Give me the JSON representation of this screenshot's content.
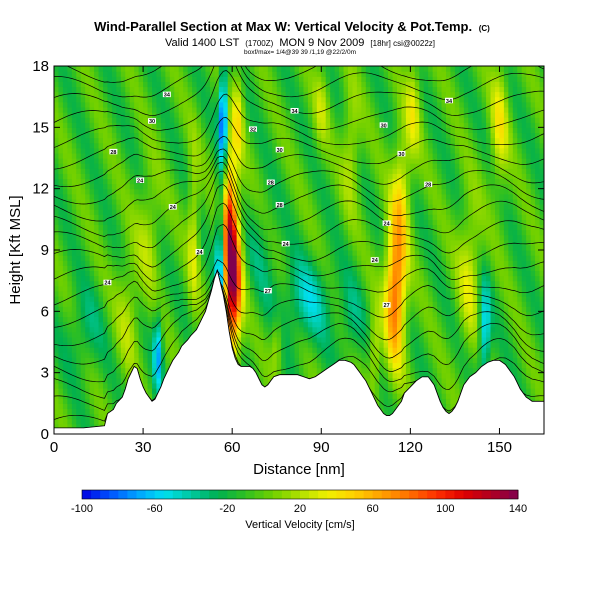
{
  "title": {
    "main": "Wind-Parallel Section at Max W: Vertical Velocity & Pot.Temp.",
    "copyright": "(C)",
    "valid_line": "Valid 1400 LST",
    "utc": "(1700Z)",
    "date_line": "MON 9 Nov 2009",
    "credit": "[18hr] csi@0022z]",
    "fine_print": "boxf/max= 1/4@39 39 /1,19 @22/2/0m"
  },
  "chart_data": {
    "type": "heatmap",
    "xlabel": "Distance [nm]",
    "ylabel": "Height [Kft MSL]",
    "xlim": [
      0,
      165
    ],
    "ylim": [
      0,
      18
    ],
    "x_ticks": [
      0,
      30,
      60,
      90,
      120,
      150
    ],
    "y_ticks": [
      0,
      3,
      6,
      9,
      12,
      15,
      18
    ],
    "colorbar": {
      "label": "Vertical Velocity [cm/s]",
      "range": [
        -100,
        140
      ],
      "ticks": [
        -100,
        -60,
        -20,
        20,
        60,
        100,
        140
      ],
      "colors": [
        "#0000e0",
        "#0050ff",
        "#00a0ff",
        "#00e0f0",
        "#00c8a0",
        "#00b050",
        "#30c020",
        "#70d000",
        "#b0e000",
        "#f0f000",
        "#ffd000",
        "#ffa000",
        "#ff7000",
        "#ff3000",
        "#e00000",
        "#b00020",
        "#800050"
      ]
    },
    "terrain": {
      "x": [
        0,
        10,
        17,
        18,
        20,
        21,
        23,
        24,
        25,
        26,
        27,
        28,
        29,
        30,
        31,
        32,
        33,
        34,
        35,
        36,
        37,
        38,
        39,
        40,
        42,
        43,
        45,
        46,
        48,
        49,
        50,
        51,
        52,
        53,
        54,
        55,
        56,
        57,
        58,
        59,
        60,
        61,
        62,
        63,
        64,
        65,
        66,
        67,
        68,
        69,
        70,
        71,
        72,
        73,
        74,
        76,
        78,
        80,
        82,
        84,
        86,
        88,
        90,
        92,
        94,
        96,
        98,
        100,
        101,
        102,
        103,
        104,
        105,
        106,
        107,
        108,
        109,
        110,
        111,
        112,
        113,
        114,
        115,
        116,
        117,
        118,
        120,
        122,
        124,
        126,
        128,
        129,
        130,
        131,
        132,
        133,
        134,
        135,
        136,
        137,
        138,
        140,
        142,
        144,
        146,
        148,
        150,
        151,
        152,
        153,
        154,
        155,
        156,
        157,
        158,
        159,
        160,
        161,
        162,
        163,
        165
      ],
      "z": [
        0.3,
        0.3,
        0.4,
        1.0,
        1.2,
        1.5,
        1.8,
        2.2,
        2.7,
        3.0,
        3.3,
        3.2,
        2.7,
        2.3,
        2.0,
        1.8,
        1.6,
        1.7,
        2.0,
        2.3,
        2.7,
        3.0,
        3.3,
        3.6,
        4.0,
        4.3,
        4.6,
        4.8,
        5.1,
        5.4,
        5.7,
        6.0,
        6.5,
        7.0,
        7.6,
        8.0,
        7.4,
        6.8,
        6.0,
        5.0,
        4.2,
        3.7,
        3.4,
        3.3,
        3.3,
        3.3,
        3.3,
        3.2,
        3.0,
        2.7,
        2.4,
        2.3,
        2.4,
        2.6,
        2.8,
        2.9,
        2.9,
        2.9,
        2.9,
        2.8,
        2.7,
        2.8,
        3.0,
        3.2,
        3.4,
        3.6,
        3.6,
        3.5,
        3.4,
        3.2,
        3.0,
        2.8,
        2.6,
        2.3,
        2.0,
        1.7,
        1.4,
        1.2,
        1.0,
        0.9,
        0.9,
        1.0,
        1.2,
        1.4,
        1.6,
        2.0,
        2.3,
        2.6,
        2.8,
        2.8,
        2.4,
        2.0,
        1.6,
        1.3,
        1.1,
        1.0,
        1.1,
        1.3,
        1.6,
        2.0,
        2.4,
        2.8,
        3.0,
        3.3,
        3.5,
        3.6,
        3.6,
        3.5,
        3.4,
        3.2,
        3.0,
        2.8,
        2.5,
        2.2,
        2.0,
        1.8,
        1.7,
        1.6,
        1.6,
        1.6,
        1.6
      ]
    },
    "field_model": {
      "background": -8,
      "features": [
        {
          "x": 60,
          "z": 7.5,
          "sx": 3.0,
          "sz": 3.5,
          "w": 145
        },
        {
          "x": 59,
          "z": 11.5,
          "sx": 2.2,
          "sz": 3.0,
          "w": 65
        },
        {
          "x": 62,
          "z": 15.5,
          "sx": 2.0,
          "sz": 2.5,
          "w": 40
        },
        {
          "x": 56,
          "z": 8.0,
          "sx": 1.5,
          "sz": 3.5,
          "w": -75
        },
        {
          "x": 57,
          "z": 15.5,
          "sx": 1.5,
          "sz": 2.5,
          "w": -85
        },
        {
          "x": 54,
          "z": 4.5,
          "sx": 1.5,
          "sz": 2.0,
          "w": -60
        },
        {
          "x": 85,
          "z": 6.5,
          "sx": 9.0,
          "sz": 2.0,
          "w": -35
        },
        {
          "x": 100,
          "z": 5.5,
          "sx": 4.0,
          "sz": 2.0,
          "w": -20
        },
        {
          "x": 115,
          "z": 7.0,
          "sx": 3.5,
          "sz": 3.5,
          "w": 95
        },
        {
          "x": 117,
          "z": 12.0,
          "sx": 3.0,
          "sz": 3.0,
          "w": 40
        },
        {
          "x": 121,
          "z": 16.0,
          "sx": 2.5,
          "sz": 2.5,
          "w": 35
        },
        {
          "x": 108,
          "z": 4.0,
          "sx": 2.0,
          "sz": 2.0,
          "w": 35
        },
        {
          "x": 145,
          "z": 5.0,
          "sx": 2.0,
          "sz": 2.5,
          "w": -55
        },
        {
          "x": 140,
          "z": 8.0,
          "sx": 4.0,
          "sz": 3.5,
          "w": 35
        },
        {
          "x": 150,
          "z": 15.0,
          "sx": 3.0,
          "sz": 3.0,
          "w": 40
        },
        {
          "x": 35,
          "z": 4.0,
          "sx": 1.5,
          "sz": 2.0,
          "w": -55
        },
        {
          "x": 32,
          "z": 10.0,
          "sx": 4.0,
          "sz": 3.0,
          "w": 25
        },
        {
          "x": 25,
          "z": 6.0,
          "sx": 4.0,
          "sz": 3.0,
          "w": 25
        },
        {
          "x": 10,
          "z": 5.0,
          "sx": 6.0,
          "sz": 2.0,
          "w": -20
        },
        {
          "x": 47,
          "z": 10.0,
          "sx": 2.0,
          "sz": 4.0,
          "w": 35
        },
        {
          "x": 70,
          "z": 9.0,
          "sx": 5.0,
          "sz": 2.5,
          "w": -15
        },
        {
          "x": 100,
          "z": 14.0,
          "sx": 3.0,
          "sz": 3.0,
          "w": 30
        },
        {
          "x": 90,
          "z": 16.0,
          "sx": 2.5,
          "sz": 2.0,
          "w": 25
        },
        {
          "x": 75,
          "z": 4.5,
          "sx": 2.0,
          "sz": 1.5,
          "w": 30
        }
      ]
    },
    "isentropes": {
      "count": 22,
      "labels": [
        {
          "x": 18,
          "z": 7.4,
          "text": "24"
        },
        {
          "x": 29,
          "z": 12.4,
          "text": "24"
        },
        {
          "x": 40,
          "z": 11.1,
          "text": "24"
        },
        {
          "x": 49,
          "z": 8.9,
          "text": "24"
        },
        {
          "x": 20,
          "z": 13.8,
          "text": "28"
        },
        {
          "x": 33,
          "z": 15.3,
          "text": "30"
        },
        {
          "x": 38,
          "z": 16.6,
          "text": "34"
        },
        {
          "x": 72,
          "z": 7.0,
          "text": "27"
        },
        {
          "x": 78,
          "z": 9.3,
          "text": "24"
        },
        {
          "x": 76,
          "z": 11.2,
          "text": "28"
        },
        {
          "x": 73,
          "z": 12.3,
          "text": "28"
        },
        {
          "x": 76,
          "z": 13.9,
          "text": "30"
        },
        {
          "x": 67,
          "z": 14.9,
          "text": "32"
        },
        {
          "x": 81,
          "z": 15.8,
          "text": "34"
        },
        {
          "x": 108,
          "z": 8.5,
          "text": "24"
        },
        {
          "x": 112,
          "z": 10.3,
          "text": "24"
        },
        {
          "x": 112,
          "z": 6.3,
          "text": "27"
        },
        {
          "x": 111,
          "z": 15.1,
          "text": "30"
        },
        {
          "x": 117,
          "z": 13.7,
          "text": "30"
        },
        {
          "x": 126,
          "z": 12.2,
          "text": "28"
        },
        {
          "x": 133,
          "z": 16.3,
          "text": "34"
        }
      ]
    }
  }
}
